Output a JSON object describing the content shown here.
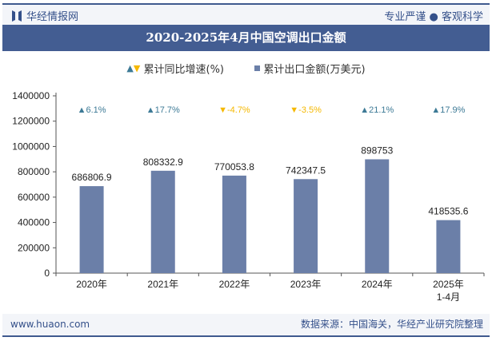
{
  "header": {
    "brand": "华经情报网",
    "slogan": "专业严谨 ● 客观科学"
  },
  "footer": {
    "website": "www.huaon.com",
    "source": "数据来源：中国海关，华经产业研究院整理"
  },
  "colors": {
    "bar": "#6b7fa8",
    "up": "#3d7a96",
    "down": "#f5b800",
    "title_bg": "#435d92"
  },
  "chart_data": {
    "type": "bar",
    "title": "2020-2025年4月中国空调出口金额",
    "categories": [
      "2020年",
      "2021年",
      "2022年",
      "2023年",
      "2024年",
      "2025年\n1-4月"
    ],
    "series": [
      {
        "name": "累计出口金额(万美元)",
        "values": [
          686806.9,
          808332.9,
          770053.8,
          742347.5,
          898753,
          418535.6
        ]
      },
      {
        "name": "累计同比增速(%)",
        "values": [
          6.1,
          17.7,
          -4.7,
          -3.5,
          21.1,
          17.9
        ]
      }
    ],
    "value_labels": [
      "686806.9",
      "808332.9",
      "770053.8",
      "742347.5",
      "898753",
      "418535.6"
    ],
    "growth_labels": [
      "6.1%",
      "17.7%",
      "-4.7%",
      "-3.5%",
      "21.1%",
      "17.9%"
    ],
    "ylim": [
      0,
      1400000
    ],
    "yticks": [
      "0",
      "200000",
      "400000",
      "600000",
      "800000",
      "1000000",
      "1200000",
      "1400000"
    ],
    "grid": false,
    "legend": "top-center"
  }
}
